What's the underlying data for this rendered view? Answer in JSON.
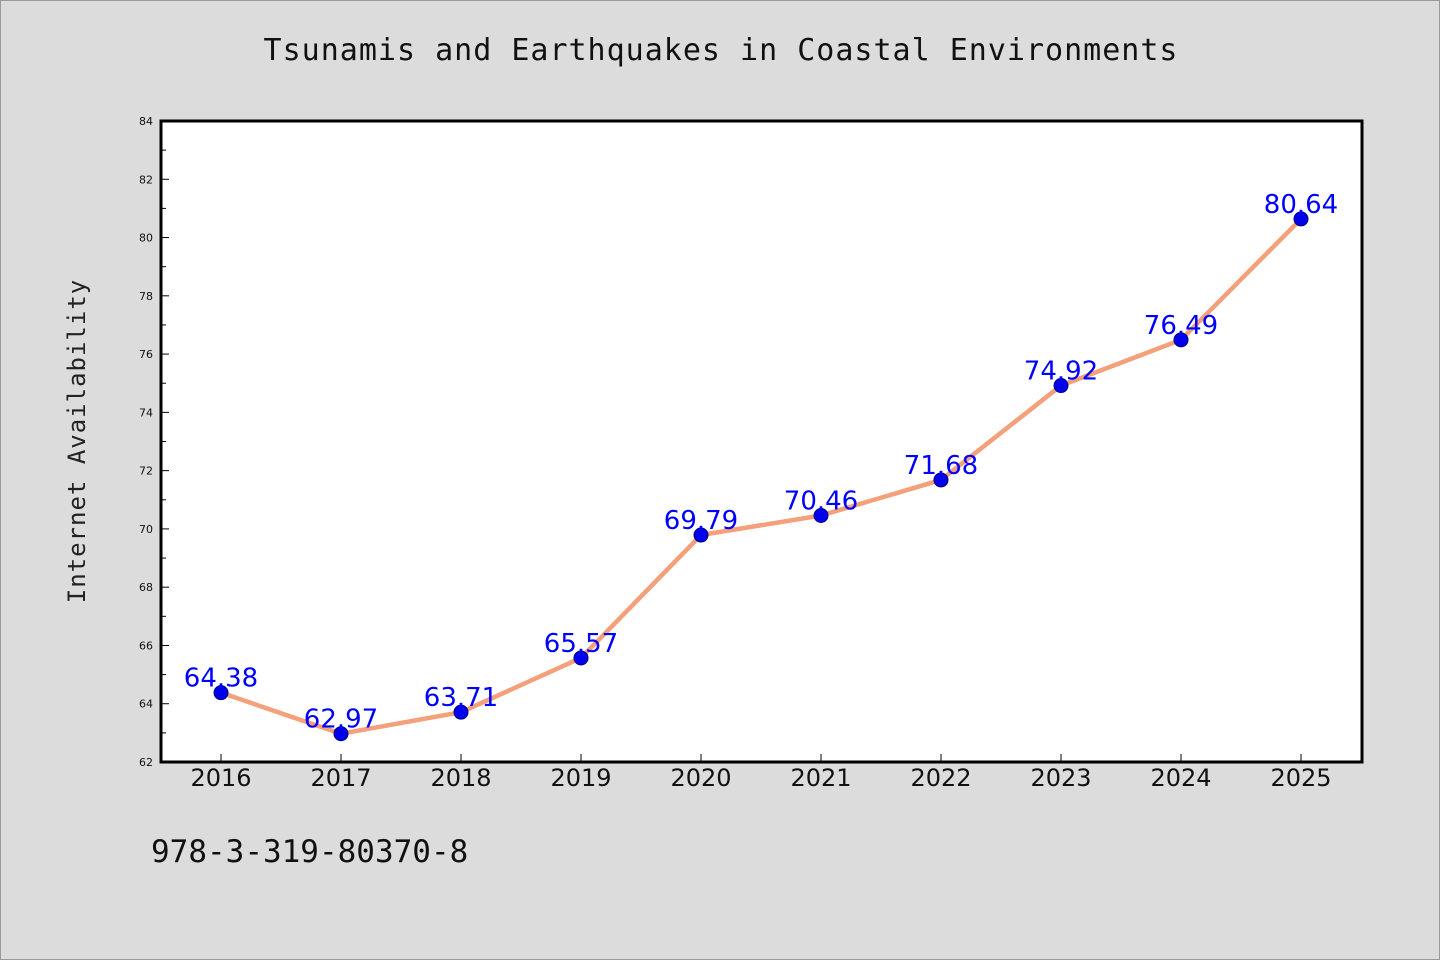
{
  "chart_data": {
    "type": "line",
    "title": "Tsunamis and Earthquakes in Coastal Environments",
    "xlabel": "",
    "ylabel": "Internet Availability",
    "x": [
      "2016",
      "2017",
      "2018",
      "2019",
      "2020",
      "2021",
      "2022",
      "2023",
      "2024",
      "2025"
    ],
    "series": [
      {
        "values": [
          64.38,
          62.97,
          63.71,
          65.57,
          69.79,
          70.46,
          71.68,
          74.92,
          76.49,
          80.64
        ],
        "data_labels": [
          "64.38",
          "62.97",
          "63.71",
          "65.57",
          "69.79",
          "70.46",
          "71.68",
          "74.92",
          "76.49",
          "80.64"
        ],
        "line_color": "#f4a07a",
        "marker_color": "#0000ee",
        "label_color": "#0000ff"
      }
    ],
    "ylim": [
      62,
      84
    ],
    "yticks": [
      "62",
      "64",
      "66",
      "68",
      "70",
      "72",
      "74",
      "76",
      "78",
      "80",
      "82",
      "84"
    ],
    "grid": false,
    "legend": "none"
  },
  "annotation": "978-3-319-80370-8",
  "colors": {
    "background": "#dcdcdc",
    "plot_background": "#ffffff"
  }
}
